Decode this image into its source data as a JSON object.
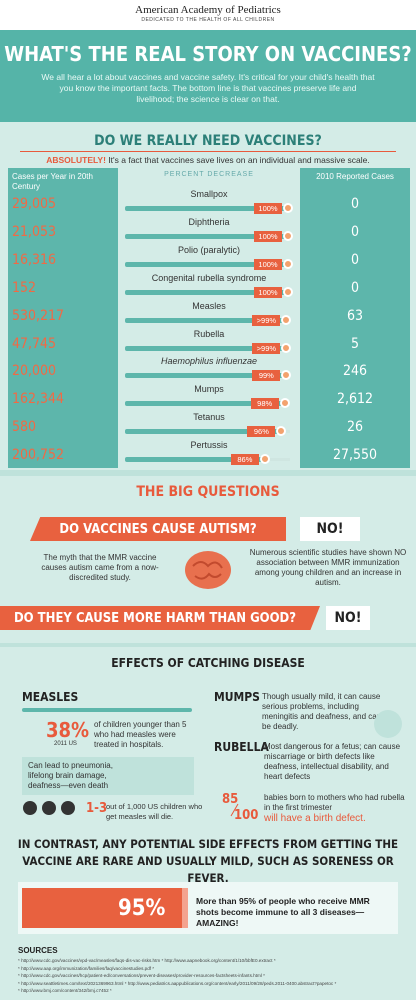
{
  "header": {
    "org": "American Academy of Pediatrics",
    "tagline": "DEDICATED TO THE HEALTH OF ALL CHILDREN"
  },
  "title": "WHAT'S THE REAL STORY ON VACCINES?",
  "intro": "We all hear a lot about vaccines and vaccine safety. It's critical for your child's health that you know the important facts. The bottom line is that vaccines preserve life and livelihood; the science is clear on that.",
  "need": {
    "heading": "DO WE REALLY NEED VACCINES?",
    "lead": "ABSOLUTELY!",
    "lead_text": "It's a fact that vaccines save lives on an individual and massive scale.",
    "col_left": "Cases per Year in 20th Century",
    "col_mid": "PERCENT DECREASE",
    "col_right": "2010 Reported Cases",
    "rows": [
      {
        "disease": "Smallpox",
        "cases_before": "29,005",
        "decrease": 100,
        "decrease_label": "100%",
        "cases_2010": "0"
      },
      {
        "disease": "Diphtheria",
        "cases_before": "21,053",
        "decrease": 100,
        "decrease_label": "100%",
        "cases_2010": "0"
      },
      {
        "disease": "Polio (paralytic)",
        "cases_before": "16,316",
        "decrease": 100,
        "decrease_label": "100%",
        "cases_2010": "0"
      },
      {
        "disease": "Congenital rubella syndrome",
        "cases_before": "152",
        "decrease": 100,
        "decrease_label": "100%",
        "cases_2010": "0"
      },
      {
        "disease": "Measles",
        "cases_before": "530,217",
        "decrease": 99,
        "decrease_label": ">99%",
        "cases_2010": "63"
      },
      {
        "disease": "Rubella",
        "cases_before": "47,745",
        "decrease": 99,
        "decrease_label": ">99%",
        "cases_2010": "5"
      },
      {
        "disease": "Haemophilus influenzae",
        "cases_before": "20,000",
        "decrease": 99,
        "decrease_label": "99%",
        "cases_2010": "246"
      },
      {
        "disease": "Mumps",
        "cases_before": "162,344",
        "decrease": 98,
        "decrease_label": "98%",
        "cases_2010": "2,612"
      },
      {
        "disease": "Tetanus",
        "cases_before": "580",
        "decrease": 96,
        "decrease_label": "96%",
        "cases_2010": "26"
      },
      {
        "disease": "Pertussis",
        "cases_before": "200,752",
        "decrease": 86,
        "decrease_label": "86%",
        "cases_2010": "27,550"
      }
    ]
  },
  "questions": {
    "heading": "THE BIG QUESTIONS",
    "q1": {
      "question": "DO VACCINES CAUSE AUTISM?",
      "answer": "NO!",
      "myth": "The myth that the MMR vaccine causes autism came from a now-discredited study.",
      "facts": "Numerous scientific studies have shown NO association between MMR immunization among young children and an increase in autism."
    },
    "q2": {
      "question": "DO THEY CAUSE MORE HARM THAN GOOD?",
      "answer": "NO!"
    }
  },
  "effects": {
    "heading": "EFFECTS OF CATCHING DISEASE",
    "measles": {
      "name": "MEASLES",
      "stat": "38%",
      "stat_note": "2011 US",
      "stat_text": "of children younger than 5 who had measles were treated in hospitals.",
      "complications": "Can lead to pneumonia, lifelong brain damage, deafness—even death",
      "deaths": "1-3",
      "deaths_text": "out of 1,000 US children who get measles will die."
    },
    "mumps": {
      "name": "MUMPS",
      "text": "Though usually mild, it can cause serious problems, including meningitis and deafness, and can be deadly."
    },
    "rubella": {
      "name": "RUBELLA",
      "text": "Most dangerous for a fetus; can cause miscarriage or birth defects like deafness, intellectual disability, and heart defects",
      "stat_num": "85",
      "stat_den": "100",
      "stat_text": "babies born to mothers who had rubella in the first trimester",
      "stat_emphasis": "will have a birth defect."
    }
  },
  "contrast": "IN CONTRAST, ANY POTENTIAL SIDE EFFECTS FROM GETTING THE VACCINE ARE RARE AND USUALLY MILD, SUCH AS SORENESS OR FEVER.",
  "immunity": {
    "stat": "95%",
    "text": "More than 95% of people who receive MMR shots become immune to all 3 diseases—AMAZING!"
  },
  "sources": {
    "heading": "SOURCES",
    "items": [
      "* http://www.cdc.gov/vaccines/vpd-vac/measles/faqs-dis-vac-risks.htm * http://www.aapnebook.org/content/1/10/bbfE0.extract *",
      "* http://www.aap.org/immunization/families/faq/vaccinestudies.pdf *",
      "* http://www.cdc.gov/vaccines/hcp/patient-ed/conversations/prevent-diseases/provider-resources-factsheets-infants.html *",
      "* http://www.seattletimes.com/text/2021369963.html * http://www.pediatrics.aappublications.org/content/early/2011/09/28/peds.2011-0400.abstract?papetoc *",
      "* http://www.bmj.com/content/342/bmj.c7452 *"
    ]
  }
}
